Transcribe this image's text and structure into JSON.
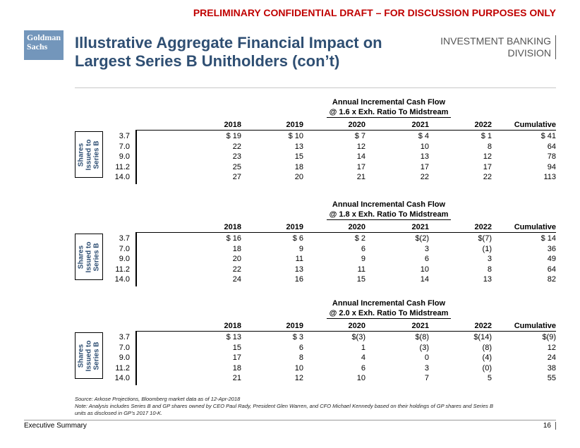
{
  "banner": "PRELIMINARY CONFIDENTIAL DRAFT – FOR DISCUSSION PURPOSES ONLY",
  "logo": {
    "line1": "Goldman",
    "line2": "Sachs"
  },
  "title": {
    "line1": "Illustrative Aggregate Financial Impact on",
    "line2": "Largest Series B Unitholders (con’t)"
  },
  "division": {
    "line1": "INVESTMENT BANKING",
    "line2": "DIVISION"
  },
  "side_label": {
    "line1": "Shares",
    "line2": "Issued to",
    "line3": "Series B"
  },
  "columns": [
    "2018",
    "2019",
    "2020",
    "2021",
    "2022",
    "Cumulative"
  ],
  "tables": [
    {
      "heading": "Annual Incremental Cash Flow",
      "subheading": "@ 1.6 x Exh. Ratio To Midstream",
      "rows": [
        {
          "shares": "3.7",
          "values": [
            "$ 19",
            "$ 10",
            "$ 7",
            "$ 4",
            "$ 1",
            "$ 41"
          ]
        },
        {
          "shares": "7.0",
          "values": [
            "22",
            "13",
            "12",
            "10",
            "8",
            "64"
          ]
        },
        {
          "shares": "9.0",
          "values": [
            "23",
            "15",
            "14",
            "13",
            "12",
            "78"
          ]
        },
        {
          "shares": "11.2",
          "values": [
            "25",
            "18",
            "17",
            "17",
            "17",
            "94"
          ]
        },
        {
          "shares": "14.0",
          "values": [
            "27",
            "20",
            "21",
            "22",
            "22",
            "113"
          ]
        }
      ]
    },
    {
      "heading": "Annual Incremental Cash Flow",
      "subheading": "@ 1.8 x Exh. Ratio To Midstream",
      "rows": [
        {
          "shares": "3.7",
          "values": [
            "$ 16",
            "$ 6",
            "$ 2",
            "$(2)",
            "$(7)",
            "$ 14"
          ]
        },
        {
          "shares": "7.0",
          "values": [
            "18",
            "9",
            "6",
            "3",
            "(1)",
            "36"
          ]
        },
        {
          "shares": "9.0",
          "values": [
            "20",
            "11",
            "9",
            "6",
            "3",
            "49"
          ]
        },
        {
          "shares": "11.2",
          "values": [
            "22",
            "13",
            "11",
            "10",
            "8",
            "64"
          ]
        },
        {
          "shares": "14.0",
          "values": [
            "24",
            "16",
            "15",
            "14",
            "13",
            "82"
          ]
        }
      ]
    },
    {
      "heading": "Annual Incremental Cash Flow",
      "subheading": "@ 2.0 x Exh. Ratio To Midstream",
      "rows": [
        {
          "shares": "3.7",
          "values": [
            "$ 13",
            "$ 3",
            "$(3)",
            "$(8)",
            "$(14)",
            "$(9)"
          ]
        },
        {
          "shares": "7.0",
          "values": [
            "15",
            "6",
            "1",
            "(3)",
            "(8)",
            "12"
          ]
        },
        {
          "shares": "9.0",
          "values": [
            "17",
            "8",
            "4",
            "0",
            "(4)",
            "24"
          ]
        },
        {
          "shares": "11.2",
          "values": [
            "18",
            "10",
            "6",
            "3",
            "(0)",
            "38"
          ]
        },
        {
          "shares": "14.0",
          "values": [
            "21",
            "12",
            "10",
            "7",
            "5",
            "55"
          ]
        }
      ]
    }
  ],
  "footnotes": {
    "source": "Source: Arkose Projections, Bloomberg market data as of 12-Apr-2018",
    "note_line1": "Note: Analysis includes Series B and GP shares owned by CEO Paul Rady, President Glen Warren, and CFO Michael Kennedy based on their holdings of GP shares and Series B",
    "note_line2": "units as disclosed in GP’s 2017 10-K."
  },
  "footer": {
    "section": "Executive Summary",
    "page": "16"
  }
}
